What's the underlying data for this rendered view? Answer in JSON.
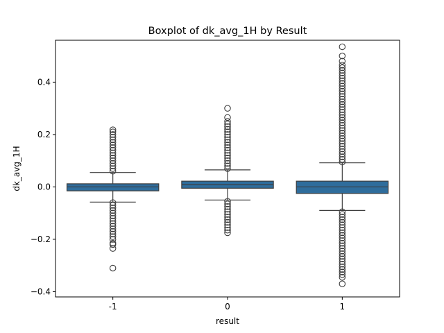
{
  "chart_data": {
    "type": "boxplot",
    "title": "Boxplot of dk_avg_1H by Result",
    "xlabel": "result",
    "ylabel": "dk_avg_1H",
    "categories": [
      "-1",
      "0",
      "1"
    ],
    "ylim": [
      -0.42,
      0.56
    ],
    "yticks": [
      -0.4,
      -0.2,
      0.0,
      0.2,
      0.4
    ],
    "ytick_labels": [
      "−0.4",
      "−0.2",
      "0.0",
      "0.2",
      "0.4"
    ],
    "box_color": "#2f6d9c",
    "series": [
      {
        "category": "-1",
        "min_whisker": -0.058,
        "q1": -0.015,
        "median": 0.0,
        "q3": 0.012,
        "max_whisker": 0.055,
        "outliers_low": [
          -0.06,
          -0.07,
          -0.08,
          -0.09,
          -0.1,
          -0.11,
          -0.12,
          -0.13,
          -0.14,
          -0.15,
          -0.16,
          -0.17,
          -0.18,
          -0.19,
          -0.2,
          -0.215,
          -0.22,
          -0.235,
          -0.31
        ],
        "outliers_high": [
          0.06,
          0.07,
          0.08,
          0.09,
          0.1,
          0.11,
          0.12,
          0.13,
          0.14,
          0.15,
          0.16,
          0.17,
          0.18,
          0.19,
          0.2,
          0.21,
          0.218
        ]
      },
      {
        "category": "0",
        "min_whisker": -0.05,
        "q1": -0.005,
        "median": 0.008,
        "q3": 0.022,
        "max_whisker": 0.065,
        "outliers_low": [
          -0.055,
          -0.065,
          -0.075,
          -0.085,
          -0.095,
          -0.105,
          -0.115,
          -0.125,
          -0.135,
          -0.145,
          -0.155,
          -0.165,
          -0.175
        ],
        "outliers_high": [
          0.07,
          0.08,
          0.09,
          0.1,
          0.11,
          0.12,
          0.13,
          0.14,
          0.15,
          0.16,
          0.17,
          0.18,
          0.19,
          0.2,
          0.21,
          0.22,
          0.23,
          0.24,
          0.25,
          0.265,
          0.3
        ]
      },
      {
        "category": "1",
        "min_whisker": -0.09,
        "q1": -0.025,
        "median": 0.0,
        "q3": 0.022,
        "max_whisker": 0.092,
        "outliers_low": [
          -0.095,
          -0.105,
          -0.115,
          -0.125,
          -0.135,
          -0.145,
          -0.155,
          -0.165,
          -0.175,
          -0.185,
          -0.195,
          -0.205,
          -0.215,
          -0.225,
          -0.235,
          -0.245,
          -0.255,
          -0.265,
          -0.275,
          -0.285,
          -0.295,
          -0.305,
          -0.315,
          -0.325,
          -0.335,
          -0.345,
          -0.37
        ],
        "outliers_high": [
          0.095,
          0.105,
          0.115,
          0.125,
          0.135,
          0.145,
          0.155,
          0.165,
          0.175,
          0.185,
          0.195,
          0.205,
          0.215,
          0.225,
          0.235,
          0.245,
          0.255,
          0.265,
          0.275,
          0.285,
          0.295,
          0.305,
          0.315,
          0.325,
          0.335,
          0.345,
          0.355,
          0.365,
          0.375,
          0.385,
          0.395,
          0.405,
          0.415,
          0.425,
          0.435,
          0.445,
          0.455,
          0.465,
          0.48,
          0.5,
          0.535
        ]
      }
    ]
  }
}
